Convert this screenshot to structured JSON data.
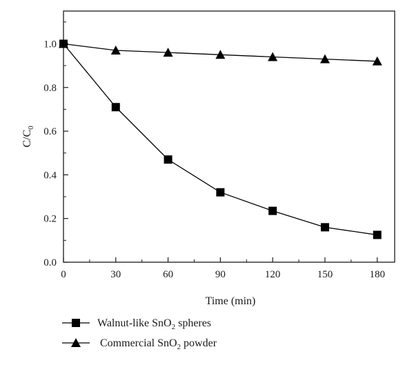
{
  "chart_data": {
    "type": "line",
    "title": "",
    "xlabel": "Time (min)",
    "ylabel": {
      "main": "C/C",
      "sub": "0"
    },
    "xlim": [
      0,
      190
    ],
    "ylim": [
      0,
      1.15
    ],
    "xticks": [
      0,
      30,
      60,
      90,
      120,
      150,
      180
    ],
    "xtick_labels": [
      "0",
      "30",
      "60",
      "90",
      "120",
      "150",
      "180"
    ],
    "yticks": [
      0,
      0.2,
      0.4,
      0.6,
      0.8,
      1.0
    ],
    "ytick_labels": [
      "0.0",
      "0.2",
      "0.4",
      "0.6",
      "0.8",
      "1.0"
    ],
    "grid": false,
    "legend_position": "bottom-left, below plot",
    "x": [
      0,
      30,
      60,
      90,
      120,
      150,
      180
    ],
    "series": [
      {
        "legend": {
          "pre": "Walnut-like SnO",
          "sub": "2",
          "post": " spheres"
        },
        "marker": "square",
        "color": "#000000",
        "values": [
          1.0,
          0.71,
          0.47,
          0.32,
          0.235,
          0.16,
          0.125
        ]
      },
      {
        "legend": {
          "pre": "Commercial SnO",
          "sub": "2",
          "post": " powder"
        },
        "marker": "triangle",
        "color": "#000000",
        "values": [
          1.0,
          0.97,
          0.96,
          0.95,
          0.94,
          0.93,
          0.92
        ]
      }
    ]
  }
}
